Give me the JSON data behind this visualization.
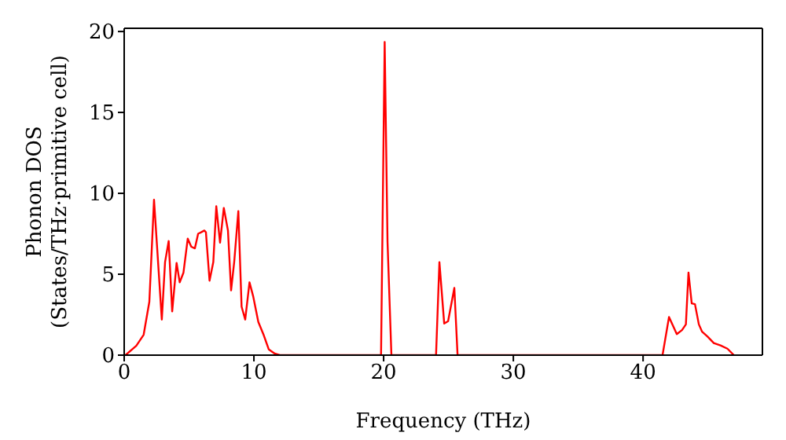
{
  "chart_data": {
    "type": "line",
    "xlabel": "Frequency (THz)",
    "ylabel": "Phonon DOS\n(States/THz·primitive cell)",
    "xlim": [
      0,
      49.2
    ],
    "xticks": [
      0,
      10,
      20,
      30,
      40
    ],
    "ylim": [
      0,
      20.2
    ],
    "yticks": [
      0,
      5,
      10,
      15,
      20
    ],
    "grid": false,
    "legend": false,
    "marker": "none",
    "line_style": "solid",
    "series": [
      {
        "color": "#ff0000",
        "x": [
          0.1,
          0.93,
          1.5,
          1.94,
          2.3,
          2.9,
          3.15,
          3.43,
          3.7,
          4.04,
          4.28,
          4.57,
          4.9,
          5.17,
          5.45,
          5.7,
          6.18,
          6.3,
          6.58,
          6.87,
          7.1,
          7.39,
          7.68,
          8.0,
          8.24,
          8.48,
          8.8,
          9.05,
          9.33,
          9.66,
          9.94,
          10.34,
          10.75,
          11.15,
          11.6,
          12.0,
          19.8,
          20.08,
          20.3,
          20.6,
          24.04,
          24.3,
          24.67,
          24.97,
          25.45,
          25.7,
          41.5,
          42.0,
          42.6,
          43.0,
          43.3,
          43.5,
          43.75,
          44.0,
          44.3,
          44.55,
          44.97,
          45.45,
          45.97,
          46.5,
          47.0
        ],
        "values": [
          0,
          0.58,
          1.26,
          3.3,
          9.6,
          2.2,
          5.75,
          7.05,
          2.7,
          5.7,
          4.5,
          5.1,
          7.2,
          6.7,
          6.6,
          7.5,
          7.7,
          7.6,
          4.6,
          5.75,
          9.2,
          6.95,
          9.1,
          7.7,
          4.0,
          5.75,
          8.9,
          3.0,
          2.2,
          4.5,
          3.65,
          2.05,
          1.25,
          0.35,
          0.1,
          0,
          0,
          19.35,
          7.0,
          0,
          0,
          5.75,
          1.95,
          2.1,
          4.15,
          0,
          0,
          2.36,
          1.3,
          1.55,
          1.9,
          5.1,
          3.2,
          3.15,
          1.9,
          1.45,
          1.15,
          0.75,
          0.6,
          0.4,
          0
        ]
      }
    ]
  }
}
